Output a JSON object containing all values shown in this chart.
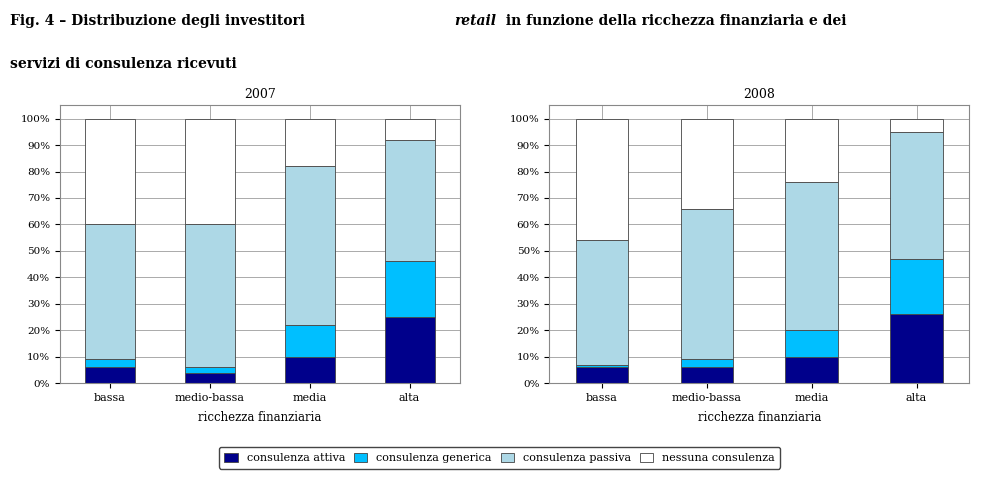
{
  "categories": [
    "bassa",
    "medio-bassa",
    "media",
    "alta"
  ],
  "year1": "2007",
  "year2": "2008",
  "data_2007": {
    "consulenza_attiva": [
      6,
      4,
      10,
      25
    ],
    "consulenza_generica": [
      3,
      2,
      12,
      21
    ],
    "consulenza_passiva": [
      51,
      54,
      60,
      46
    ],
    "nessuna_consulenza": [
      40,
      40,
      18,
      8
    ]
  },
  "data_2008": {
    "consulenza_attiva": [
      6,
      6,
      10,
      26
    ],
    "consulenza_generica": [
      1,
      3,
      10,
      21
    ],
    "consulenza_passiva": [
      47,
      57,
      56,
      48
    ],
    "nessuna_consulenza": [
      46,
      34,
      24,
      5
    ]
  },
  "colors": {
    "consulenza_attiva": "#00008B",
    "consulenza_generica": "#00BFFF",
    "consulenza_passiva": "#ADD8E6",
    "nessuna_consulenza": "#FFFFFF"
  },
  "legend_labels": [
    "consulenza attiva",
    "consulenza generica",
    "consulenza passiva",
    "nessuna consulenza"
  ],
  "xlabel": "ricchezza finanziaria",
  "background_color": "#FFFFFF",
  "title_line1": "Fig. 4 – Distribuzione degli investitori ",
  "title_retail": "retail",
  "title_line1_end": " in funzione della ricchezza finanziaria e dei",
  "title_line2": "servizi di consulenza ricevuti"
}
